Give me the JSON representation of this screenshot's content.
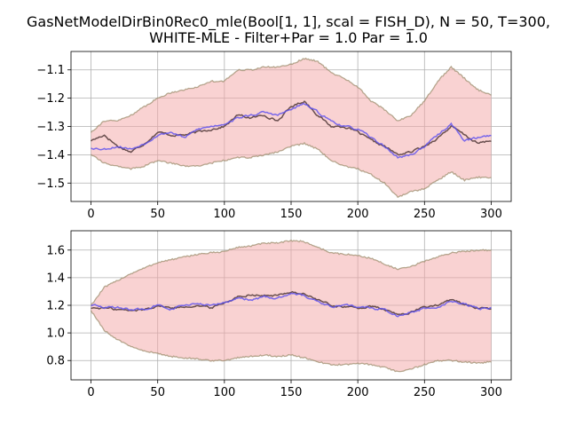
{
  "title_line1": "GasNetModelDirBin0Rec0_mle(Bool[1, 1], scal = FISH_D), N = 50, T=300,",
  "title_line2": "WHITE-MLE - Filter+Par = 1.0 Par = 1.0",
  "colors": {
    "band_fill": "#f4a6a6",
    "band_edge": "#9e8e6e",
    "true_line": "#5a4040",
    "filtered_line": "#5a4ef0",
    "grid": "#b0b0b0"
  },
  "chart_data": [
    {
      "type": "line",
      "xlim": [
        -15,
        315
      ],
      "ylim": [
        -1.565,
        -1.035
      ],
      "xticks": [
        0,
        50,
        100,
        150,
        200,
        250,
        300
      ],
      "yticks": [
        -1.5,
        -1.4,
        -1.3,
        -1.2,
        -1.1
      ],
      "ytick_labels": [
        "−1.5",
        "−1.4",
        "−1.3",
        "−1.2",
        "−1.1"
      ],
      "grid": true,
      "knots": [
        {
          "x": 0,
          "true": -1.35,
          "filt": -1.375,
          "up": -1.32,
          "lo": -1.4
        },
        {
          "x": 10,
          "true": -1.33,
          "filt": -1.38,
          "up": -1.28,
          "lo": -1.43
        },
        {
          "x": 20,
          "true": -1.37,
          "filt": -1.37,
          "up": -1.28,
          "lo": -1.44
        },
        {
          "x": 30,
          "true": -1.39,
          "filt": -1.38,
          "up": -1.26,
          "lo": -1.45
        },
        {
          "x": 40,
          "true": -1.36,
          "filt": -1.36,
          "up": -1.23,
          "lo": -1.44
        },
        {
          "x": 50,
          "true": -1.32,
          "filt": -1.33,
          "up": -1.2,
          "lo": -1.42
        },
        {
          "x": 60,
          "true": -1.33,
          "filt": -1.32,
          "up": -1.18,
          "lo": -1.43
        },
        {
          "x": 70,
          "true": -1.33,
          "filt": -1.34,
          "up": -1.17,
          "lo": -1.44
        },
        {
          "x": 80,
          "true": -1.32,
          "filt": -1.31,
          "up": -1.16,
          "lo": -1.44
        },
        {
          "x": 90,
          "true": -1.31,
          "filt": -1.3,
          "up": -1.14,
          "lo": -1.43
        },
        {
          "x": 100,
          "true": -1.3,
          "filt": -1.29,
          "up": -1.14,
          "lo": -1.42
        },
        {
          "x": 110,
          "true": -1.26,
          "filt": -1.27,
          "up": -1.1,
          "lo": -1.41
        },
        {
          "x": 120,
          "true": -1.27,
          "filt": -1.26,
          "up": -1.1,
          "lo": -1.41
        },
        {
          "x": 130,
          "true": -1.26,
          "filt": -1.25,
          "up": -1.09,
          "lo": -1.4
        },
        {
          "x": 140,
          "true": -1.28,
          "filt": -1.26,
          "up": -1.09,
          "lo": -1.39
        },
        {
          "x": 150,
          "true": -1.23,
          "filt": -1.24,
          "up": -1.08,
          "lo": -1.37
        },
        {
          "x": 160,
          "true": -1.21,
          "filt": -1.22,
          "up": -1.06,
          "lo": -1.36
        },
        {
          "x": 170,
          "true": -1.26,
          "filt": -1.25,
          "up": -1.07,
          "lo": -1.38
        },
        {
          "x": 180,
          "true": -1.3,
          "filt": -1.28,
          "up": -1.11,
          "lo": -1.42
        },
        {
          "x": 190,
          "true": -1.3,
          "filt": -1.3,
          "up": -1.13,
          "lo": -1.44
        },
        {
          "x": 200,
          "true": -1.32,
          "filt": -1.31,
          "up": -1.16,
          "lo": -1.45
        },
        {
          "x": 210,
          "true": -1.35,
          "filt": -1.34,
          "up": -1.21,
          "lo": -1.47
        },
        {
          "x": 220,
          "true": -1.37,
          "filt": -1.37,
          "up": -1.24,
          "lo": -1.5
        },
        {
          "x": 230,
          "true": -1.4,
          "filt": -1.41,
          "up": -1.28,
          "lo": -1.55
        },
        {
          "x": 240,
          "true": -1.39,
          "filt": -1.4,
          "up": -1.26,
          "lo": -1.53
        },
        {
          "x": 250,
          "true": -1.37,
          "filt": -1.37,
          "up": -1.21,
          "lo": -1.52
        },
        {
          "x": 260,
          "true": -1.34,
          "filt": -1.33,
          "up": -1.14,
          "lo": -1.49
        },
        {
          "x": 270,
          "true": -1.3,
          "filt": -1.29,
          "up": -1.09,
          "lo": -1.46
        },
        {
          "x": 280,
          "true": -1.33,
          "filt": -1.35,
          "up": -1.13,
          "lo": -1.49
        },
        {
          "x": 290,
          "true": -1.36,
          "filt": -1.34,
          "up": -1.17,
          "lo": -1.48
        },
        {
          "x": 300,
          "true": -1.35,
          "filt": -1.33,
          "up": -1.19,
          "lo": -1.48
        }
      ]
    },
    {
      "type": "line",
      "xlim": [
        -15,
        315
      ],
      "ylim": [
        0.66,
        1.74
      ],
      "xticks": [
        0,
        50,
        100,
        150,
        200,
        250,
        300
      ],
      "yticks": [
        0.8,
        1.0,
        1.2,
        1.4,
        1.6
      ],
      "ytick_labels": [
        "0.8",
        "1.0",
        "1.2",
        "1.4",
        "1.6"
      ],
      "grid": true,
      "knots": [
        {
          "x": 0,
          "true": 1.18,
          "filt": 1.2,
          "up": 1.2,
          "lo": 1.16
        },
        {
          "x": 10,
          "true": 1.18,
          "filt": 1.19,
          "up": 1.33,
          "lo": 1.02
        },
        {
          "x": 20,
          "true": 1.17,
          "filt": 1.18,
          "up": 1.38,
          "lo": 0.95
        },
        {
          "x": 30,
          "true": 1.16,
          "filt": 1.17,
          "up": 1.43,
          "lo": 0.9
        },
        {
          "x": 40,
          "true": 1.17,
          "filt": 1.17,
          "up": 1.47,
          "lo": 0.87
        },
        {
          "x": 50,
          "true": 1.2,
          "filt": 1.2,
          "up": 1.51,
          "lo": 0.85
        },
        {
          "x": 60,
          "true": 1.18,
          "filt": 1.17,
          "up": 1.53,
          "lo": 0.83
        },
        {
          "x": 70,
          "true": 1.19,
          "filt": 1.2,
          "up": 1.55,
          "lo": 0.82
        },
        {
          "x": 80,
          "true": 1.2,
          "filt": 1.21,
          "up": 1.57,
          "lo": 0.81
        },
        {
          "x": 90,
          "true": 1.18,
          "filt": 1.2,
          "up": 1.58,
          "lo": 0.8
        },
        {
          "x": 100,
          "true": 1.22,
          "filt": 1.22,
          "up": 1.59,
          "lo": 0.8
        },
        {
          "x": 110,
          "true": 1.26,
          "filt": 1.25,
          "up": 1.62,
          "lo": 0.82
        },
        {
          "x": 120,
          "true": 1.28,
          "filt": 1.24,
          "up": 1.63,
          "lo": 0.83
        },
        {
          "x": 130,
          "true": 1.27,
          "filt": 1.26,
          "up": 1.65,
          "lo": 0.84
        },
        {
          "x": 140,
          "true": 1.27,
          "filt": 1.25,
          "up": 1.65,
          "lo": 0.83
        },
        {
          "x": 150,
          "true": 1.3,
          "filt": 1.29,
          "up": 1.67,
          "lo": 0.84
        },
        {
          "x": 160,
          "true": 1.28,
          "filt": 1.27,
          "up": 1.66,
          "lo": 0.82
        },
        {
          "x": 170,
          "true": 1.24,
          "filt": 1.23,
          "up": 1.62,
          "lo": 0.79
        },
        {
          "x": 180,
          "true": 1.2,
          "filt": 1.19,
          "up": 1.58,
          "lo": 0.77
        },
        {
          "x": 190,
          "true": 1.19,
          "filt": 1.2,
          "up": 1.57,
          "lo": 0.77
        },
        {
          "x": 200,
          "true": 1.18,
          "filt": 1.19,
          "up": 1.56,
          "lo": 0.78
        },
        {
          "x": 210,
          "true": 1.19,
          "filt": 1.18,
          "up": 1.54,
          "lo": 0.77
        },
        {
          "x": 220,
          "true": 1.17,
          "filt": 1.17,
          "up": 1.5,
          "lo": 0.75
        },
        {
          "x": 230,
          "true": 1.13,
          "filt": 1.12,
          "up": 1.46,
          "lo": 0.72
        },
        {
          "x": 240,
          "true": 1.15,
          "filt": 1.15,
          "up": 1.48,
          "lo": 0.74
        },
        {
          "x": 250,
          "true": 1.19,
          "filt": 1.18,
          "up": 1.52,
          "lo": 0.77
        },
        {
          "x": 260,
          "true": 1.2,
          "filt": 1.18,
          "up": 1.55,
          "lo": 0.8
        },
        {
          "x": 270,
          "true": 1.24,
          "filt": 1.23,
          "up": 1.58,
          "lo": 0.8
        },
        {
          "x": 280,
          "true": 1.21,
          "filt": 1.21,
          "up": 1.59,
          "lo": 0.79
        },
        {
          "x": 290,
          "true": 1.18,
          "filt": 1.18,
          "up": 1.6,
          "lo": 0.78
        },
        {
          "x": 300,
          "true": 1.17,
          "filt": 1.18,
          "up": 1.6,
          "lo": 0.79
        }
      ]
    }
  ]
}
